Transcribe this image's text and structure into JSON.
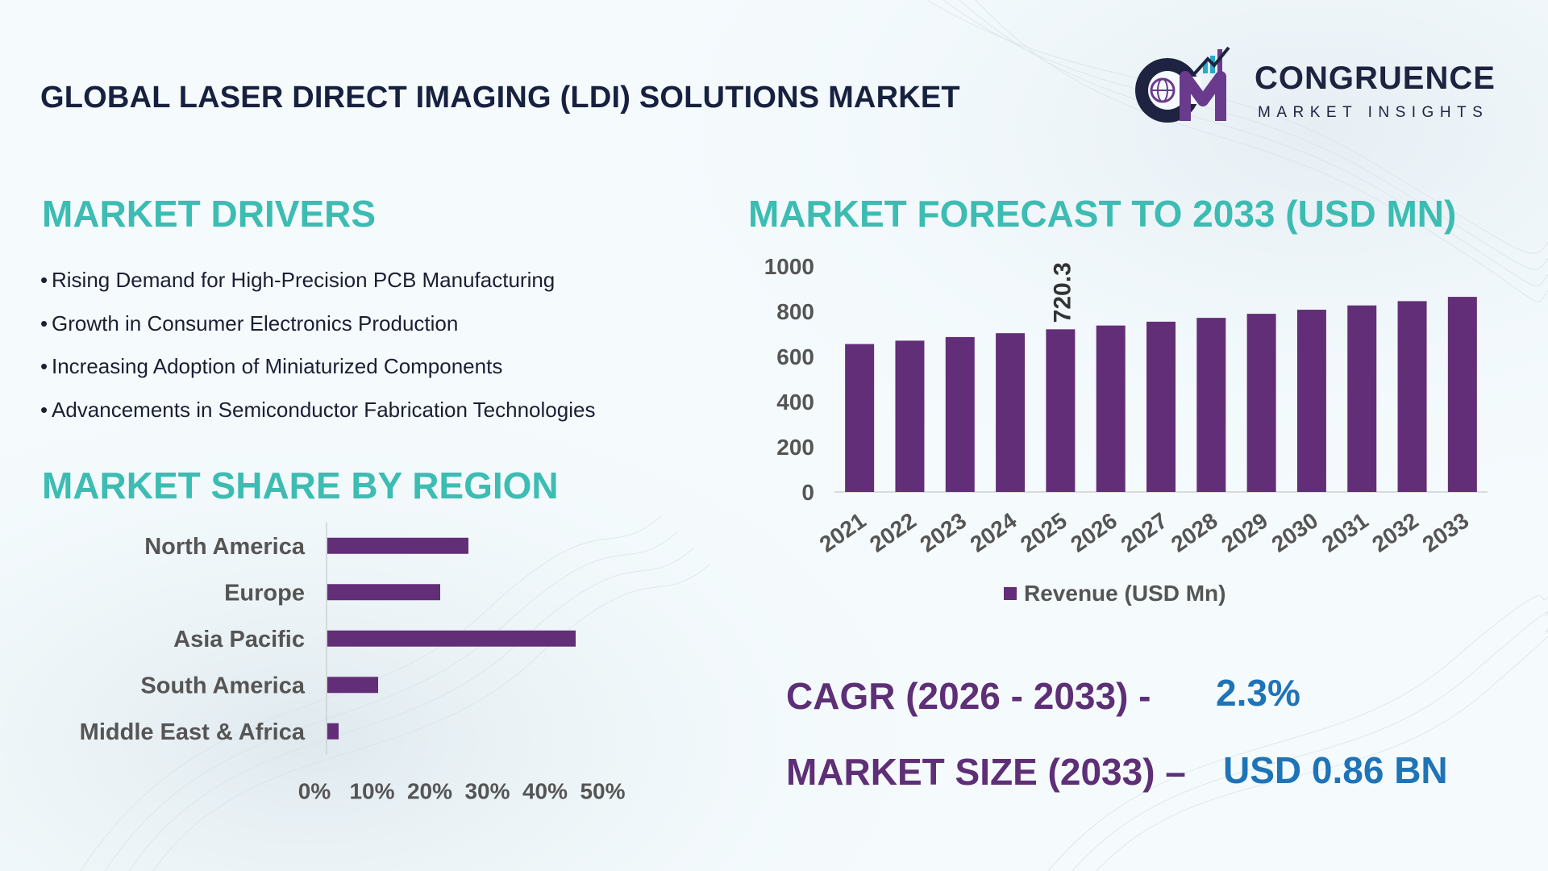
{
  "header": {
    "title": "GLOBAL LASER DIRECT IMAGING (LDI) SOLUTIONS MARKET",
    "logo_name": "CONGRUENCE",
    "logo_sub": "MARKET INSIGHTS"
  },
  "drivers": {
    "title": "MARKET DRIVERS",
    "items": [
      "Rising Demand for High-Precision PCB Manufacturing",
      "Growth in Consumer Electronics Production",
      "Increasing Adoption of Miniaturized Components",
      "Advancements in Semiconductor Fabrication Technologies"
    ]
  },
  "region": {
    "title": "MARKET SHARE BY REGION"
  },
  "forecast": {
    "title": "MARKET FORECAST TO 2033 (USD MN)"
  },
  "kpis": {
    "cagr_label": "CAGR (2026 - 2033) -",
    "cagr_value": "2.3%",
    "size_label": "MARKET SIZE (2033) –",
    "size_value": "USD 0.86 BN"
  },
  "colors": {
    "bar": "#632e78",
    "section_title": "#3cbcb2",
    "kpi_label": "#5e2f77",
    "kpi_value": "#1f74b8",
    "title": "#17213f"
  },
  "chart_data": [
    {
      "type": "bar",
      "orientation": "vertical",
      "title": "MARKET FORECAST TO 2033 (USD MN)",
      "categories": [
        "2021",
        "2022",
        "2023",
        "2024",
        "2025",
        "2026",
        "2027",
        "2028",
        "2029",
        "2030",
        "2031",
        "2032",
        "2033"
      ],
      "series": [
        {
          "name": "Revenue (USD Mn)",
          "values": [
            655,
            670,
            686,
            703,
            720.3,
            737,
            754,
            771,
            789,
            807,
            826,
            845,
            864
          ]
        }
      ],
      "data_labels": [
        {
          "category": "2025",
          "text": "720.3"
        }
      ],
      "ylim": [
        0,
        1000
      ],
      "yticks": [
        0,
        200,
        400,
        600,
        800,
        1000
      ],
      "legend": "bottom",
      "grid": false
    },
    {
      "type": "bar",
      "orientation": "horizontal",
      "title": "MARKET SHARE BY REGION",
      "categories": [
        "North America",
        "Europe",
        "Asia Pacific",
        "South America",
        "Middle East & Africa"
      ],
      "values": [
        25,
        20,
        44,
        9,
        2
      ],
      "xlim": [
        0,
        50
      ],
      "xticks": [
        "0%",
        "10%",
        "20%",
        "30%",
        "40%",
        "50%"
      ],
      "grid": false
    }
  ]
}
